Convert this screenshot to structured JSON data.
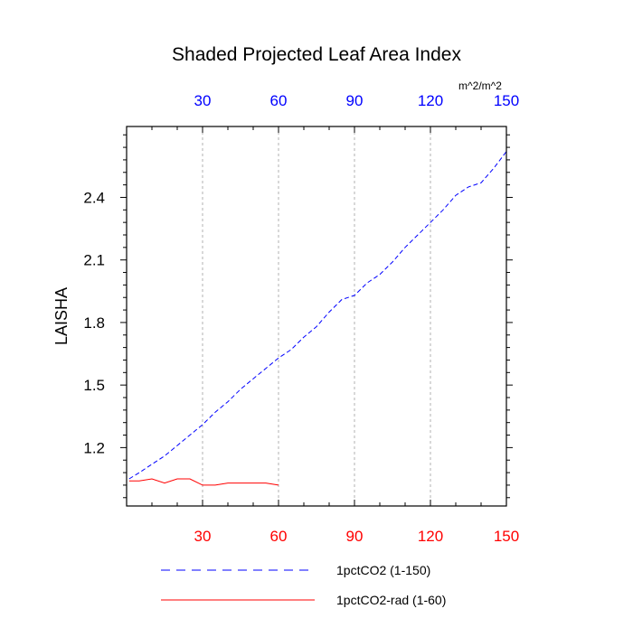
{
  "chart_data": {
    "type": "line",
    "title": "Shaded Projected Leaf Area Index",
    "ylabel": "LAISHA",
    "units": "m^2/m^2",
    "xlim": [
      0,
      150
    ],
    "ylim": [
      0.92,
      2.74
    ],
    "yticks": [
      1.2,
      1.5,
      1.8,
      2.1,
      2.4
    ],
    "ytick_labels": [
      "1.2",
      "1.5",
      "1.8",
      "2.1",
      "2.4"
    ],
    "bottom_axis": {
      "ticks": [
        30,
        60,
        90,
        120,
        150
      ],
      "tick_labels": [
        "30",
        "60",
        "90",
        "120",
        "150"
      ],
      "color": "#ff0000"
    },
    "top_axis": {
      "ticks": [
        30,
        60,
        90,
        120,
        150
      ],
      "tick_labels": [
        "30",
        "60",
        "90",
        "120",
        "150"
      ],
      "color": "#0000ff"
    },
    "grid": "vertical-dashed",
    "legend_position": "bottom",
    "series": [
      {
        "name": "1pctCO2 (1-150)",
        "color": "#0000ff",
        "style": "dashed",
        "x": [
          1,
          5,
          10,
          15,
          20,
          25,
          30,
          35,
          40,
          45,
          50,
          55,
          60,
          65,
          70,
          75,
          80,
          85,
          90,
          95,
          100,
          105,
          110,
          115,
          120,
          125,
          130,
          135,
          140,
          145,
          150
        ],
        "y": [
          1.05,
          1.08,
          1.12,
          1.16,
          1.21,
          1.26,
          1.31,
          1.37,
          1.42,
          1.48,
          1.53,
          1.58,
          1.63,
          1.67,
          1.73,
          1.78,
          1.85,
          1.91,
          1.93,
          1.99,
          2.03,
          2.09,
          2.16,
          2.22,
          2.28,
          2.34,
          2.41,
          2.45,
          2.47,
          2.54,
          2.62
        ]
      },
      {
        "name": "1pctCO2-rad (1-60)",
        "color": "#ff0000",
        "style": "solid",
        "x": [
          1,
          5,
          10,
          15,
          20,
          25,
          30,
          35,
          40,
          45,
          50,
          55,
          60
        ],
        "y": [
          1.04,
          1.04,
          1.05,
          1.03,
          1.05,
          1.05,
          1.02,
          1.02,
          1.03,
          1.03,
          1.03,
          1.03,
          1.02
        ]
      }
    ]
  }
}
